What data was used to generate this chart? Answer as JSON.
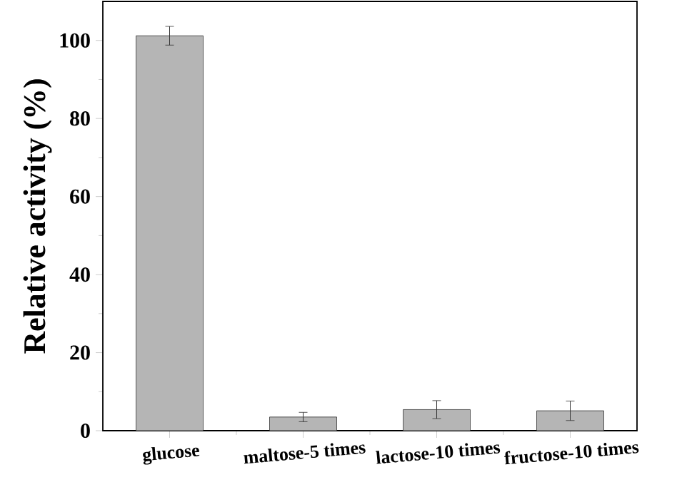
{
  "chart_data": {
    "type": "bar",
    "ylabel": "Relative activity (%)",
    "categories": [
      "glucose",
      "maltose-5 times",
      "lactose-10 times",
      "fructose-10 times"
    ],
    "values": [
      101.2,
      3.5,
      5.4,
      5.1
    ],
    "errors": [
      2.4,
      1.2,
      2.3,
      2.5
    ],
    "color": "#b5b5b5",
    "ylim": [
      0,
      110
    ],
    "yticks": [
      0,
      20,
      40,
      60,
      80,
      100
    ],
    "grid": false
  }
}
